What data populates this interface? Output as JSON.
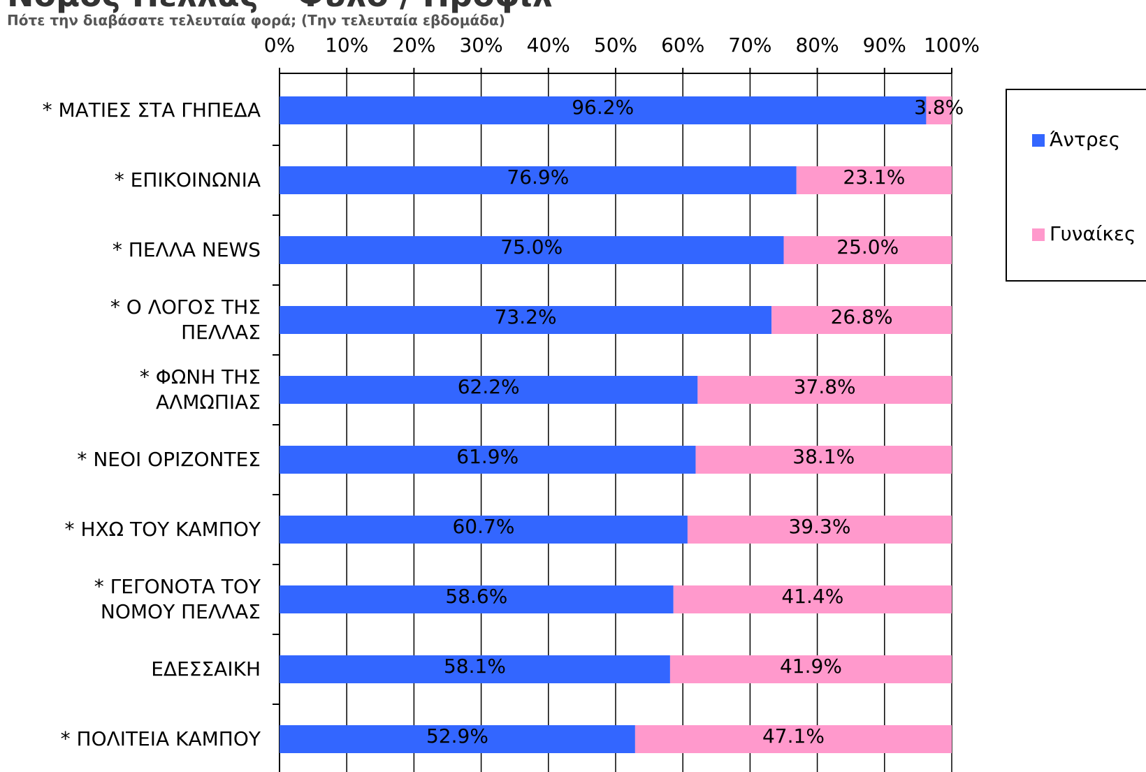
{
  "chart_data": {
    "type": "stacked-barh",
    "title": "Νομός Πέλλας – Φύλο / Προφίλ",
    "subtitle": "Πότε την διαβάσατε τελευταία φορά; (Την τελευταία εβδομάδα)",
    "categories": [
      "* ΜΑΤΙΕΣ ΣΤΑ ΓΗΠΕΔΑ",
      "* ΕΠΙΚΟΙΝΩΝΙΑ",
      "* ΠΕΛΛΑ NEWS",
      "* Ο ΛΟΓΟΣ ΤΗΣ\nΠΕΛΛΑΣ",
      "* ΦΩΝΗ ΤΗΣ\nΑΛΜΩΠΙΑΣ",
      "* ΝΕΟΙ ΟΡΙΖΟΝΤΕΣ",
      "* ΗΧΩ ΤΟΥ ΚΑΜΠΟΥ",
      "* ΓΕΓΟΝΟΤΑ ΤΟΥ\nΝΟΜΟΥ ΠΕΛΛΑΣ",
      "ΕΔΕΣΣΑΙΚΗ",
      "* ΠΟΛΙΤΕΙΑ ΚΑΜΠΟΥ"
    ],
    "series": [
      {
        "name": "Άντρες",
        "color": "#3366ff",
        "values": [
          96.2,
          76.9,
          75.0,
          73.2,
          62.2,
          61.9,
          60.7,
          58.6,
          58.1,
          52.9
        ],
        "value_labels": [
          "96.2%",
          "76.9%",
          "75.0%",
          "73.2%",
          "62.2%",
          "61.9%",
          "60.7%",
          "58.6%",
          "58.1%",
          "52.9%"
        ]
      },
      {
        "name": "Γυναίκες",
        "color": "#ff99cc",
        "values": [
          3.8,
          23.1,
          25.0,
          26.8,
          37.8,
          38.1,
          39.3,
          41.4,
          41.9,
          47.1
        ],
        "value_labels": [
          "3.8%",
          "23.1%",
          "25.0%",
          "26.8%",
          "37.8%",
          "38.1%",
          "39.3%",
          "41.4%",
          "41.9%",
          "47.1%"
        ]
      }
    ],
    "xlim": [
      0,
      100
    ],
    "xticks": [
      {
        "value": 0,
        "label": "0%"
      },
      {
        "value": 10,
        "label": "10%"
      },
      {
        "value": 20,
        "label": "20%"
      },
      {
        "value": 30,
        "label": "30%"
      },
      {
        "value": 40,
        "label": "40%"
      },
      {
        "value": 50,
        "label": "50%"
      },
      {
        "value": 60,
        "label": "60%"
      },
      {
        "value": 70,
        "label": "70%"
      },
      {
        "value": 80,
        "label": "80%"
      },
      {
        "value": 90,
        "label": "90%"
      },
      {
        "value": 100,
        "label": "100%"
      }
    ],
    "grid": true,
    "legend": "right"
  }
}
